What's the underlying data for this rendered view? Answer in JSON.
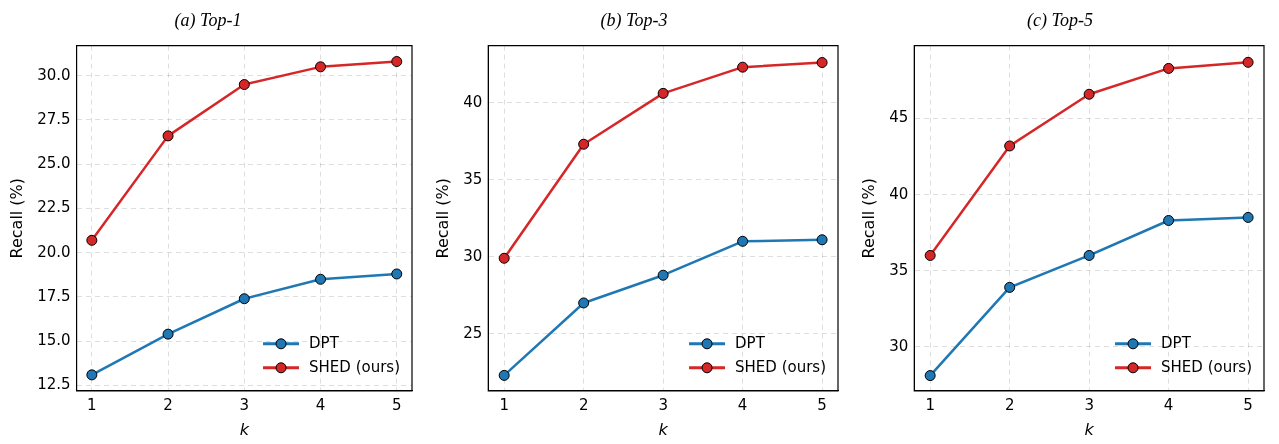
{
  "chart_data": [
    {
      "type": "line",
      "title": "(a) Top-1",
      "xlabel": "k",
      "ylabel": "Recall (%)",
      "x": [
        1,
        2,
        3,
        4,
        5
      ],
      "xlim": [
        0.8,
        5.2
      ],
      "xticks": [
        1,
        2,
        3,
        4,
        5
      ],
      "ylim": [
        12.2,
        31.7
      ],
      "yticks": [
        12.5,
        {
          "value": 15,
          "label": "15.0"
        },
        17.5,
        {
          "value": 20,
          "label": "20.0"
        },
        22.5,
        {
          "value": 25,
          "label": "25.0"
        },
        27.5,
        {
          "value": 30,
          "label": "30.0"
        }
      ],
      "grid": true,
      "legend": "bottom right",
      "marker": "circle",
      "line_style": "solid",
      "series": [
        {
          "name": "DPT",
          "color": "#1f77b4",
          "values": [
            13.1,
            15.4,
            17.4,
            18.5,
            18.8
          ]
        },
        {
          "name": "SHED (ours)",
          "color": "#d62728",
          "values": [
            20.7,
            26.6,
            29.5,
            30.5,
            30.8
          ]
        }
      ]
    },
    {
      "type": "line",
      "title": "(b) Top-3",
      "xlabel": "k",
      "ylabel": "Recall (%)",
      "x": [
        1,
        2,
        3,
        4,
        5
      ],
      "xlim": [
        0.8,
        5.2
      ],
      "xticks": [
        1,
        2,
        3,
        4,
        5
      ],
      "ylim": [
        21.3,
        43.7
      ],
      "yticks": [
        25,
        30,
        35,
        40
      ],
      "grid": true,
      "legend": "bottom right",
      "marker": "circle",
      "line_style": "solid",
      "series": [
        {
          "name": "DPT",
          "color": "#1f77b4",
          "values": [
            22.3,
            27.0,
            28.8,
            31.0,
            31.1
          ]
        },
        {
          "name": "SHED (ours)",
          "color": "#d62728",
          "values": [
            29.9,
            37.3,
            40.6,
            42.3,
            42.6
          ]
        }
      ]
    },
    {
      "type": "line",
      "title": "(c) Top-5",
      "xlabel": "k",
      "ylabel": "Recall (%)",
      "x": [
        1,
        2,
        3,
        4,
        5
      ],
      "xlim": [
        0.8,
        5.2
      ],
      "xticks": [
        1,
        2,
        3,
        4,
        5
      ],
      "ylim": [
        27.1,
        49.8
      ],
      "yticks": [
        30,
        35,
        40,
        45
      ],
      "grid": true,
      "legend": "bottom right",
      "marker": "circle",
      "line_style": "solid",
      "series": [
        {
          "name": "DPT",
          "color": "#1f77b4",
          "values": [
            28.1,
            33.9,
            36.0,
            38.3,
            38.5
          ]
        },
        {
          "name": "SHED (ours)",
          "color": "#d62728",
          "values": [
            36.0,
            43.2,
            46.6,
            48.3,
            48.7
          ]
        }
      ]
    }
  ]
}
